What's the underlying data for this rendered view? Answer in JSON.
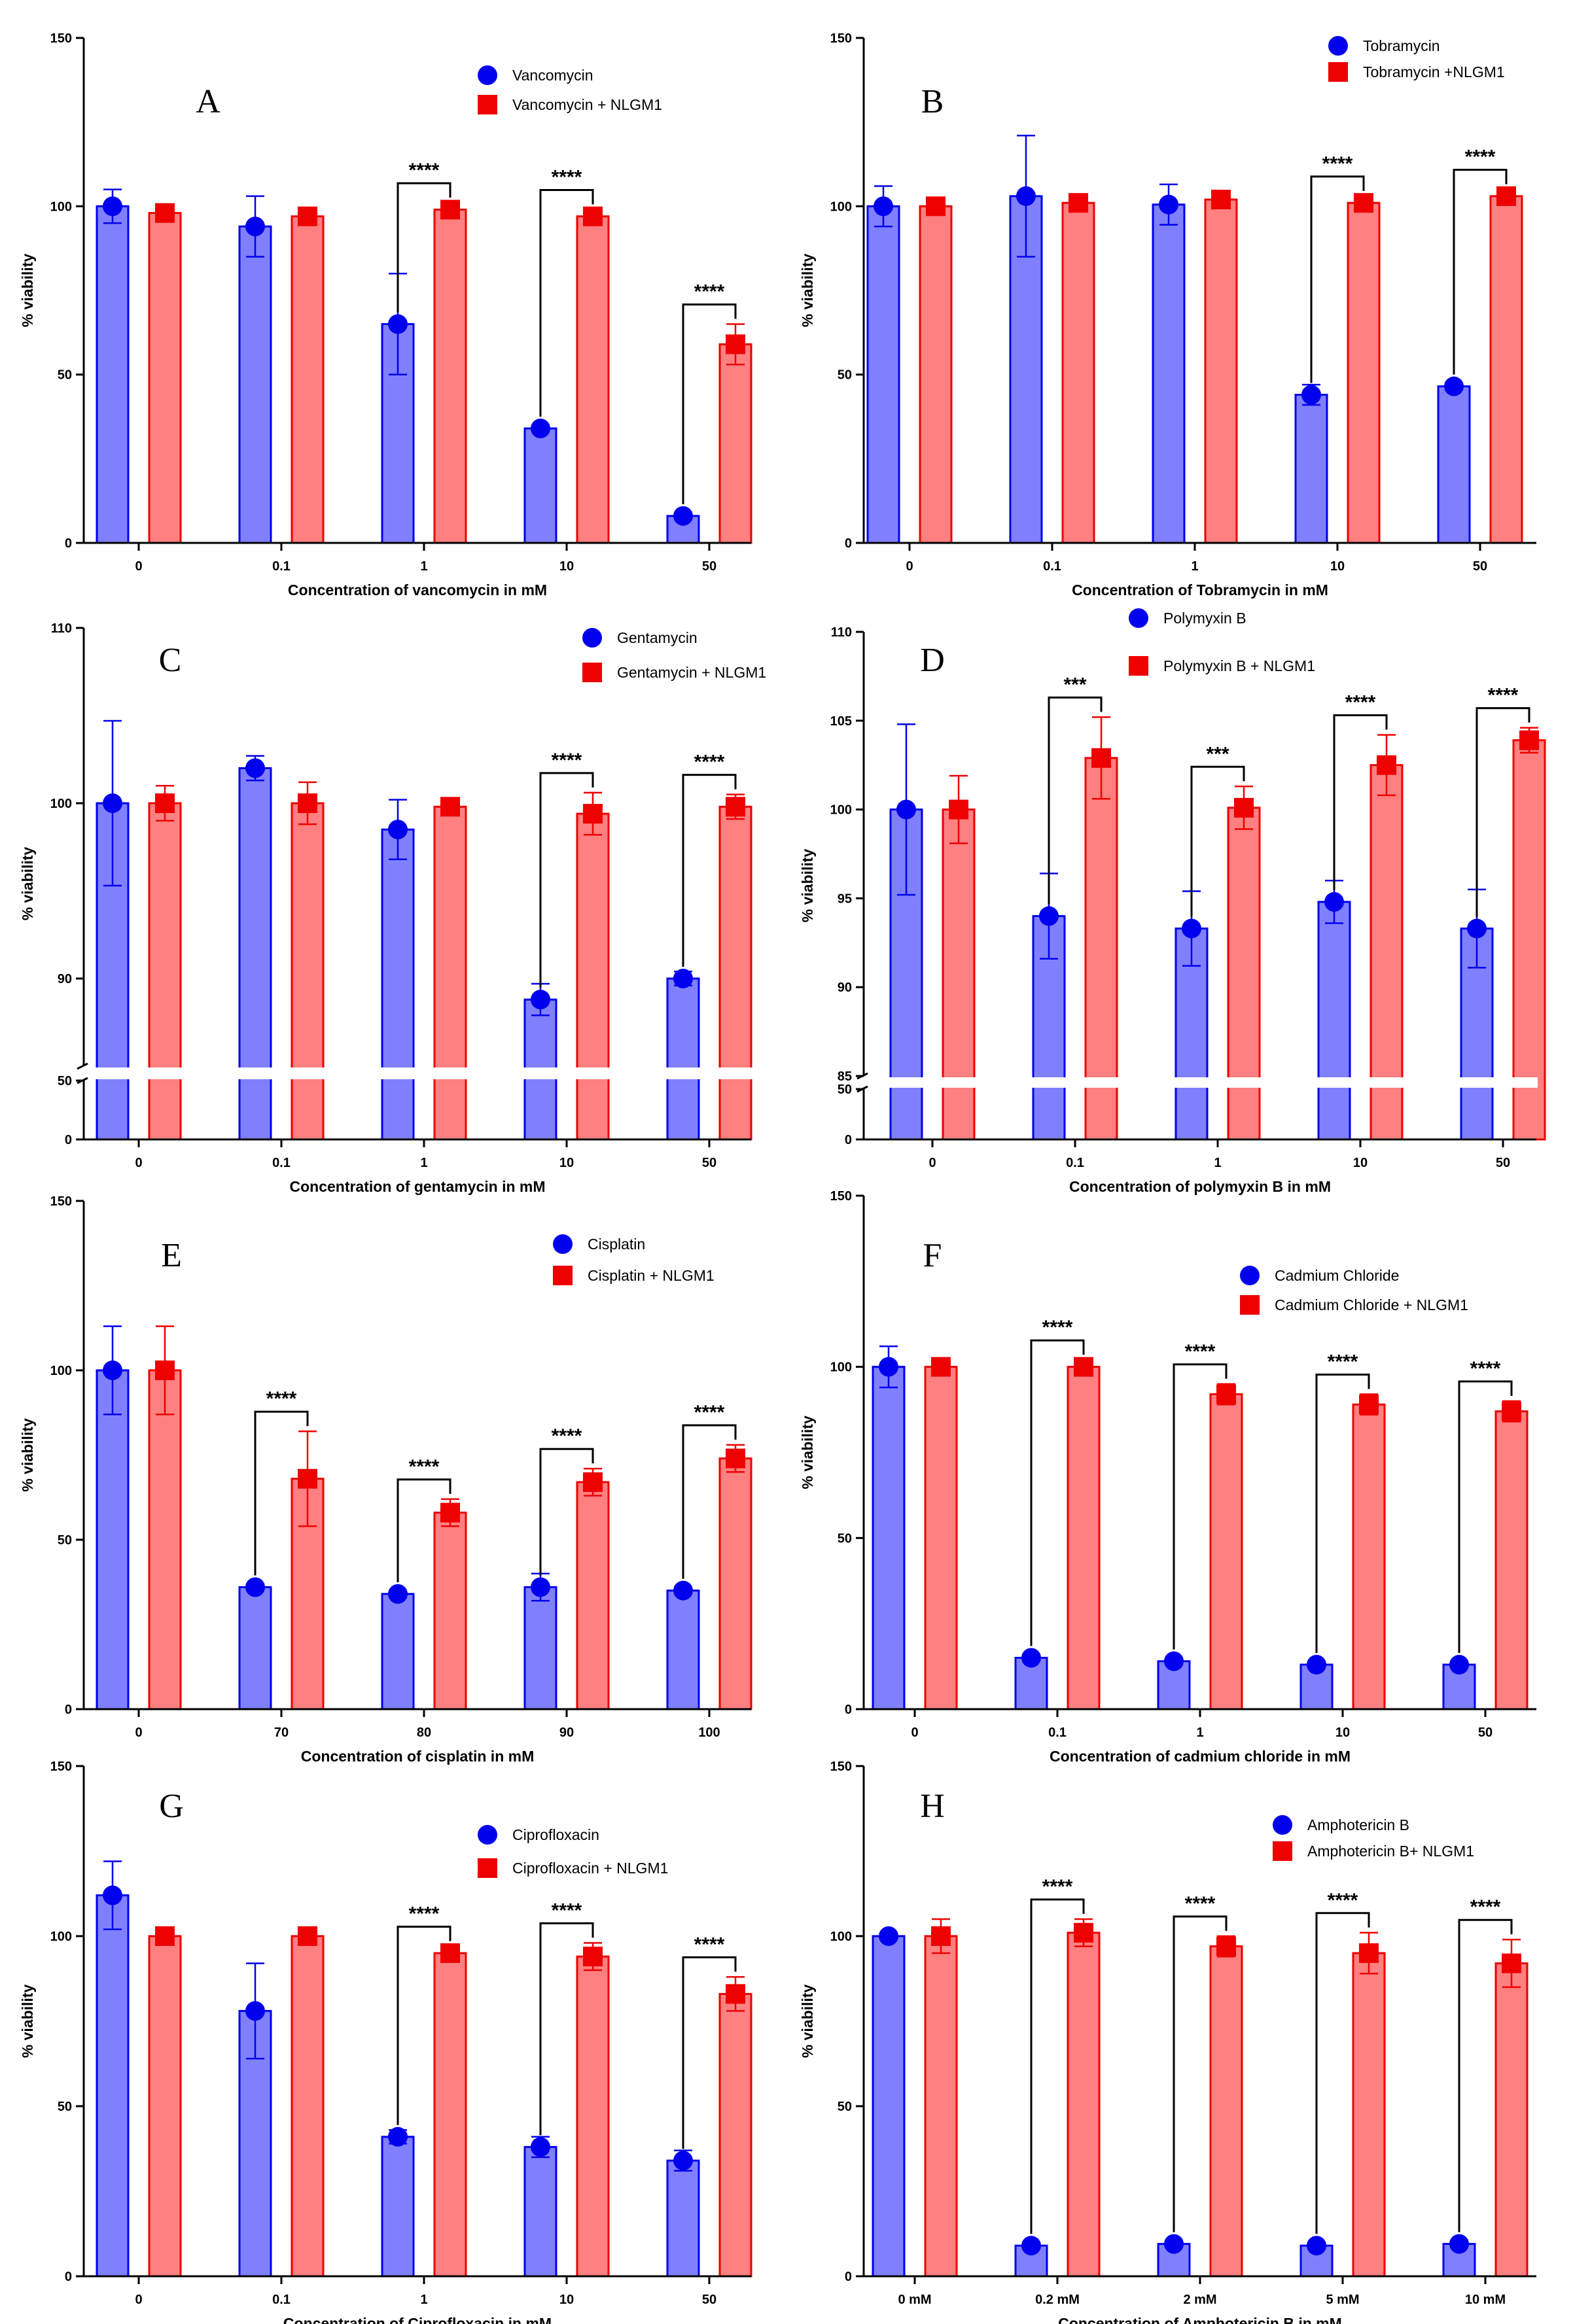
{
  "colors": {
    "blue_fill": "#8080ff",
    "blue": "#0000ee",
    "red_fill": "#ff8080",
    "red": "#ee0000"
  },
  "chart_data": [
    {
      "type": "bar",
      "panel_label": "A",
      "categories": [
        "0",
        "0.1",
        "1",
        "10",
        "50"
      ],
      "xlabel": "Concentration of vancomycin in mM",
      "ylabel": "% viability",
      "ylim": [
        0,
        150
      ],
      "yticks": [
        0,
        50,
        100,
        150
      ],
      "grid": false,
      "legend_position": "top-right",
      "series": [
        {
          "name": "Vancomycin",
          "values": [
            100,
            94,
            65,
            34,
            8
          ],
          "errors": [
            5,
            9,
            15,
            1,
            1
          ]
        },
        {
          "name": "Vancomycin + NLGM1",
          "values": [
            98,
            97,
            99,
            97,
            59
          ],
          "errors": [
            1,
            1,
            2,
            2,
            6
          ]
        }
      ],
      "annotations": [
        {
          "category": "1",
          "text": "****"
        },
        {
          "category": "10",
          "text": "****"
        },
        {
          "category": "50",
          "text": "****"
        }
      ]
    },
    {
      "type": "bar",
      "panel_label": "B",
      "categories": [
        "0",
        "0.1",
        "1",
        "10",
        "50"
      ],
      "xlabel": "Concentration of Tobramycin in mM",
      "ylabel": "% viability",
      "ylim": [
        0,
        150
      ],
      "yticks": [
        0,
        50,
        100,
        150
      ],
      "grid": false,
      "legend_position": "top-right",
      "series": [
        {
          "name": "Tobramycin",
          "values": [
            100,
            103,
            100.5,
            44,
            46.5
          ],
          "errors": [
            6,
            18,
            6,
            3,
            1
          ]
        },
        {
          "name": "Tobramycin +NLGM1",
          "values": [
            100,
            101,
            102,
            101,
            103
          ],
          "errors": [
            2,
            1,
            1,
            2,
            2
          ]
        }
      ],
      "annotations": [
        {
          "category": "10",
          "text": "****"
        },
        {
          "category": "50",
          "text": "****"
        }
      ]
    },
    {
      "type": "bar",
      "panel_label": "C",
      "categories": [
        "0",
        "0.1",
        "1",
        "10",
        "50"
      ],
      "xlabel": "Concentration of gentamycin in mM",
      "ylabel": "% viability",
      "ylim": [
        0,
        110
      ],
      "yticks": [
        0,
        50,
        90,
        100,
        110
      ],
      "axis_break": [
        50,
        85
      ],
      "grid": false,
      "legend_position": "top-right",
      "series": [
        {
          "name": "Gentamycin",
          "values": [
            100,
            102,
            98.5,
            88.8,
            90
          ],
          "errors": [
            4.7,
            0.7,
            1.7,
            0.9,
            0.4
          ]
        },
        {
          "name": "Gentamycin + NLGM1",
          "values": [
            100,
            100,
            99.8,
            99.4,
            99.8
          ],
          "errors": [
            1,
            1.2,
            0.4,
            1.2,
            0.7
          ]
        }
      ],
      "annotations": [
        {
          "category": "10",
          "text": "****"
        },
        {
          "category": "50",
          "text": "****"
        }
      ]
    },
    {
      "type": "bar",
      "panel_label": "D",
      "categories": [
        "0",
        "0.1",
        "1",
        "10",
        "50"
      ],
      "xlabel": "Concentration of polymyxin B in mM",
      "ylabel": "% viability",
      "ylim": [
        0,
        110
      ],
      "yticks": [
        0,
        50,
        85,
        90,
        95,
        100,
        105,
        110
      ],
      "axis_break": [
        50,
        85
      ],
      "grid": false,
      "legend_position": "top-right",
      "series": [
        {
          "name": "Polymyxin B",
          "values": [
            100,
            94,
            93.3,
            94.8,
            93.3
          ],
          "errors": [
            4.8,
            2.4,
            2.1,
            1.2,
            2.2
          ]
        },
        {
          "name": "Polymyxin B + NLGM1",
          "values": [
            100,
            102.9,
            100.1,
            102.5,
            103.9
          ],
          "errors": [
            1.9,
            2.3,
            1.2,
            1.7,
            0.7
          ]
        }
      ],
      "annotations": [
        {
          "category": "0.1",
          "text": "***"
        },
        {
          "category": "1",
          "text": "***"
        },
        {
          "category": "10",
          "text": "****"
        },
        {
          "category": "50",
          "text": "****"
        }
      ]
    },
    {
      "type": "bar",
      "panel_label": "E",
      "categories": [
        "0",
        "70",
        "80",
        "90",
        "100"
      ],
      "xlabel": "Concentration of cisplatin in mM",
      "ylabel": "% viability",
      "ylim": [
        0,
        150
      ],
      "yticks": [
        0,
        50,
        100,
        150
      ],
      "grid": false,
      "legend_position": "top-right",
      "series": [
        {
          "name": "Cisplatin",
          "values": [
            100,
            36,
            34,
            36,
            35
          ],
          "errors": [
            13,
            1,
            1,
            4,
            1
          ]
        },
        {
          "name": "Cisplatin + NLGM1",
          "values": [
            100,
            68,
            58,
            67,
            74
          ],
          "errors": [
            13,
            14,
            4,
            4,
            4
          ]
        }
      ],
      "annotations": [
        {
          "category": "70",
          "text": "****"
        },
        {
          "category": "80",
          "text": "****"
        },
        {
          "category": "90",
          "text": "****"
        },
        {
          "category": "100",
          "text": "****"
        }
      ]
    },
    {
      "type": "bar",
      "panel_label": "F",
      "categories": [
        "0",
        "0.1",
        "1",
        "10",
        "50"
      ],
      "xlabel": "Concentration of cadmium chloride in mM",
      "ylabel": "% viability",
      "ylim": [
        0,
        150
      ],
      "yticks": [
        0,
        50,
        100,
        150
      ],
      "grid": false,
      "legend_position": "top-right",
      "series": [
        {
          "name": "Cadmium Chloride",
          "values": [
            100,
            15,
            14,
            13,
            13
          ],
          "errors": [
            6,
            1,
            1,
            1,
            1
          ]
        },
        {
          "name": "Cadmium Chloride + NLGM1",
          "values": [
            100,
            100,
            92,
            89,
            87
          ],
          "errors": [
            1,
            2,
            3,
            3,
            3
          ]
        }
      ],
      "annotations": [
        {
          "category": "0.1",
          "text": "****"
        },
        {
          "category": "1",
          "text": "****"
        },
        {
          "category": "10",
          "text": "****"
        },
        {
          "category": "50",
          "text": "****"
        }
      ]
    },
    {
      "type": "bar",
      "panel_label": "G",
      "categories": [
        "0",
        "0.1",
        "1",
        "10",
        "50"
      ],
      "xlabel": "Concentration of Ciprofloxacin in mM",
      "ylabel": "% viability",
      "ylim": [
        0,
        150
      ],
      "yticks": [
        0,
        50,
        100,
        150
      ],
      "grid": false,
      "legend_position": "top-right",
      "series": [
        {
          "name": "Ciprofloxacin",
          "values": [
            112,
            78,
            41,
            38,
            34
          ],
          "errors": [
            10,
            14,
            2,
            3,
            3
          ]
        },
        {
          "name": "Ciprofloxacin + NLGM1",
          "values": [
            100,
            100,
            95,
            94,
            83
          ],
          "errors": [
            1,
            1,
            2,
            4,
            5
          ]
        }
      ],
      "annotations": [
        {
          "category": "1",
          "text": "****"
        },
        {
          "category": "10",
          "text": "****"
        },
        {
          "category": "50",
          "text": "****"
        }
      ]
    },
    {
      "type": "bar",
      "panel_label": "H",
      "categories": [
        "0 mM",
        "0.2 mM",
        "2 mM",
        "5 mM",
        "10 mM"
      ],
      "xlabel": "Concentration of Amphotericin B in mM",
      "ylabel": "% viability",
      "ylim": [
        0,
        150
      ],
      "yticks": [
        0,
        50,
        100,
        150
      ],
      "grid": false,
      "legend_position": "top-right",
      "series": [
        {
          "name": "Amphotericin B",
          "values": [
            100,
            9,
            9.5,
            9,
            9.5
          ],
          "errors": [
            1,
            1,
            1,
            1,
            1
          ]
        },
        {
          "name": "Amphotericin B+ NLGM1",
          "values": [
            100,
            101,
            97,
            95,
            92
          ],
          "errors": [
            5,
            4,
            3,
            6,
            7
          ]
        }
      ],
      "annotations": [
        {
          "category": "0.2 mM",
          "text": "****"
        },
        {
          "category": "2 mM",
          "text": "****"
        },
        {
          "category": "5 mM",
          "text": "****"
        },
        {
          "category": "10 mM",
          "text": "****"
        }
      ]
    }
  ]
}
